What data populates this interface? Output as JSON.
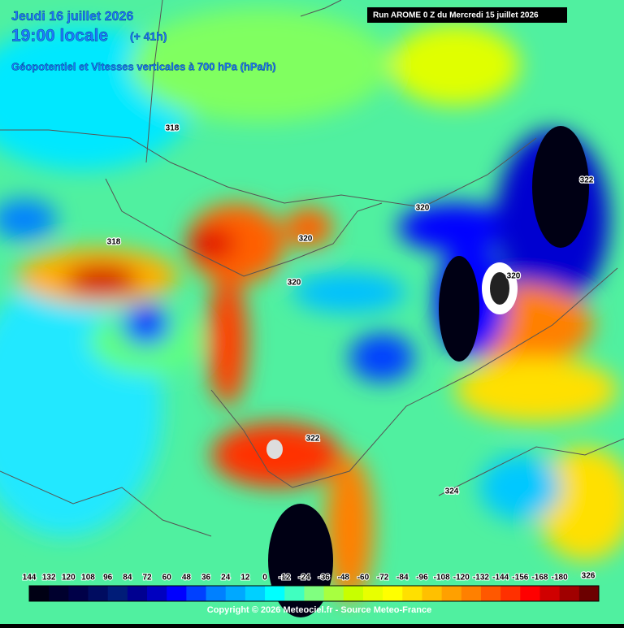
{
  "header": {
    "date": "Jeudi 16 juillet 2026",
    "time": "19:00 locale",
    "lead": "(+ 41h)",
    "field": "Géopotentiel et Vitesses verticales à 700 hPa (hPa/h)",
    "run": "Run AROME 0 Z du Mercredi 15 juillet 2026"
  },
  "contour_labels": [
    318,
    318,
    320,
    320,
    320,
    320,
    322,
    322,
    324,
    326
  ],
  "legend": {
    "ticks": [
      144,
      132,
      120,
      108,
      96,
      84,
      72,
      60,
      48,
      36,
      24,
      12,
      0,
      -12,
      -24,
      -36,
      -48,
      -60,
      -72,
      -84,
      -96,
      -108,
      -120,
      -132,
      -144,
      -156,
      -168,
      -180
    ],
    "colors": [
      "#000014",
      "#00002e",
      "#000048",
      "#000c60",
      "#001c78",
      "#000090",
      "#0000c0",
      "#0000ff",
      "#0040ff",
      "#0080ff",
      "#00a8ff",
      "#00d0ff",
      "#00ffff",
      "#40ffc0",
      "#80ff80",
      "#a8ff40",
      "#c8ff00",
      "#e8ff00",
      "#ffff00",
      "#ffe000",
      "#ffc000",
      "#ffa000",
      "#ff8000",
      "#ff5800",
      "#ff3000",
      "#ff0000",
      "#d00000",
      "#a00000",
      "#6c0000"
    ]
  },
  "copyright": "Copyright © 2026 Meteociel.fr - Source Meteo-France"
}
